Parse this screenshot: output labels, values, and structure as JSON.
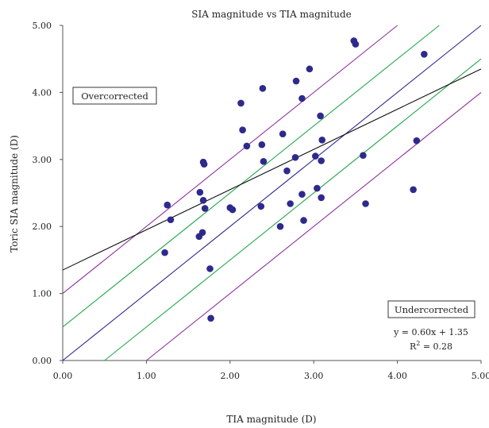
{
  "chart_data": {
    "type": "scatter",
    "title": "SIA magnitude vs TIA magnitude",
    "xlabel": "TIA magnitude (D)",
    "ylabel": "Toric SIA magnitude (D)",
    "xlim": [
      0,
      5
    ],
    "ylim": [
      0,
      5
    ],
    "x_ticks": [
      "0.00",
      "1.00",
      "2.00",
      "3.00",
      "4.00",
      "5.00"
    ],
    "y_ticks": [
      "0.00",
      "1.00",
      "2.00",
      "3.00",
      "4.00",
      "5.00"
    ],
    "grid": false,
    "annotations": {
      "overcorrected": "Overcorrected",
      "undercorrected": "Undercorrected",
      "equation": "y = 0.60x + 1.35",
      "r2_prefix": "R",
      "r2_sup": "2",
      "r2_suffix": " = 0.28"
    },
    "colors": {
      "points": "#2e2a8c",
      "identity_line": "#2e2a8c",
      "inner_band": "#22a84a",
      "outer_band": "#8e2f9e",
      "regression_line": "#111111"
    },
    "reference_lines": [
      {
        "kind": "identity",
        "offset": 0
      },
      {
        "kind": "inner_band",
        "offset": 0.5
      },
      {
        "kind": "inner_band",
        "offset": -0.5
      },
      {
        "kind": "outer_band",
        "offset": 1.0
      },
      {
        "kind": "outer_band",
        "offset": -1.0
      }
    ],
    "regression": {
      "slope": 0.6,
      "intercept": 1.35
    },
    "points": [
      [
        1.22,
        1.61
      ],
      [
        1.25,
        2.32
      ],
      [
        1.29,
        2.1
      ],
      [
        1.63,
        1.85
      ],
      [
        1.64,
        2.51
      ],
      [
        1.67,
        1.91
      ],
      [
        1.68,
        2.39
      ],
      [
        1.68,
        2.96
      ],
      [
        1.69,
        2.93
      ],
      [
        1.7,
        2.27
      ],
      [
        1.76,
        1.37
      ],
      [
        1.77,
        0.63
      ],
      [
        2.0,
        2.28
      ],
      [
        2.03,
        2.25
      ],
      [
        2.13,
        3.84
      ],
      [
        2.15,
        3.44
      ],
      [
        2.2,
        3.2
      ],
      [
        2.37,
        2.3
      ],
      [
        2.38,
        3.22
      ],
      [
        2.39,
        4.06
      ],
      [
        2.4,
        2.97
      ],
      [
        2.6,
        2.0
      ],
      [
        2.63,
        3.38
      ],
      [
        2.68,
        2.83
      ],
      [
        2.72,
        2.34
      ],
      [
        2.78,
        3.03
      ],
      [
        2.79,
        4.17
      ],
      [
        2.86,
        2.48
      ],
      [
        2.86,
        3.91
      ],
      [
        2.88,
        2.09
      ],
      [
        2.95,
        4.35
      ],
      [
        3.02,
        3.05
      ],
      [
        3.04,
        2.57
      ],
      [
        3.08,
        3.65
      ],
      [
        3.09,
        2.98
      ],
      [
        3.09,
        2.43
      ],
      [
        3.1,
        3.29
      ],
      [
        3.48,
        4.77
      ],
      [
        3.5,
        4.72
      ],
      [
        3.59,
        3.06
      ],
      [
        3.62,
        2.34
      ],
      [
        4.19,
        2.55
      ],
      [
        4.23,
        3.28
      ],
      [
        4.32,
        4.57
      ]
    ]
  }
}
